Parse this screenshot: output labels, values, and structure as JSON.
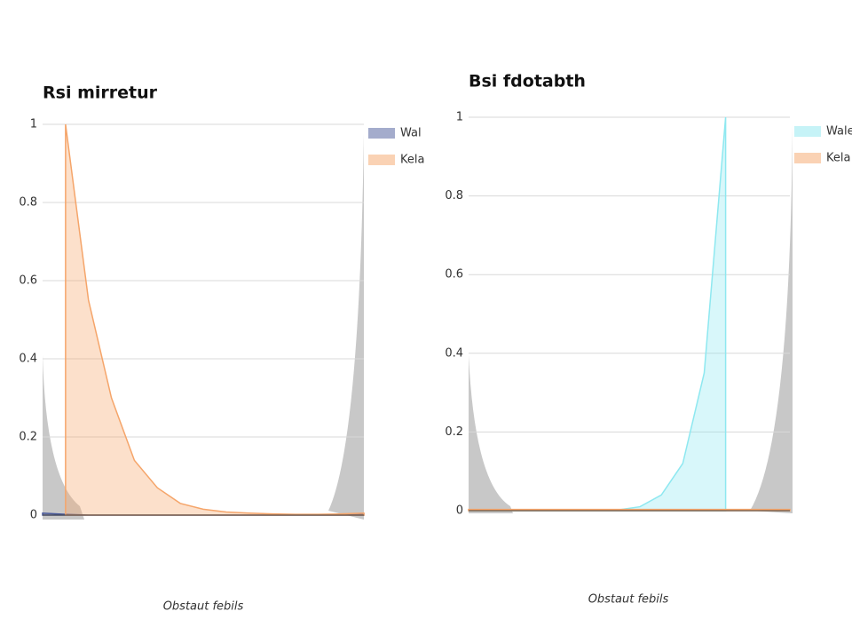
{
  "chart_data": [
    {
      "type": "area",
      "title": "Rsi mirretur",
      "x_label": "Obstaut febils",
      "categories": [
        null,
        null,
        null,
        null,
        null,
        null,
        null,
        null,
        null,
        null,
        null,
        null,
        null,
        null,
        null
      ],
      "series": [
        {
          "name": "Wal",
          "color": "#4a5a9a",
          "values": [
            0.005,
            0.002,
            0,
            0,
            0,
            0,
            0,
            0,
            0,
            0,
            0,
            0,
            0,
            0,
            0.002
          ]
        },
        {
          "name": "Kela",
          "color": "#f5a56a",
          "values": [
            null,
            1,
            0.55,
            0.3,
            0.14,
            0.07,
            0.03,
            0.015,
            0.008,
            0.005,
            0.003,
            0.002,
            0.002,
            0.003,
            0.005
          ]
        }
      ],
      "ylim": [
        0,
        1
      ],
      "yticks": [
        0,
        0.2,
        0.4,
        0.6,
        0.8,
        1
      ],
      "grid": true
    },
    {
      "type": "area",
      "title": "Bsi fdotabth",
      "x_label": "Obstaut febils",
      "categories": [
        null,
        null,
        null,
        null,
        null,
        null,
        null,
        null,
        null,
        null,
        null,
        null,
        null,
        null,
        null,
        null
      ],
      "series": [
        {
          "name": "Wale",
          "color": "#8ee8f0",
          "values": [
            0,
            0,
            0,
            0,
            0,
            0,
            0,
            0.002,
            0.01,
            0.04,
            0.12,
            0.35,
            1,
            null,
            null,
            null
          ]
        },
        {
          "name": "Kela",
          "color": "#f5a56a",
          "values": [
            0.003,
            0.003,
            0.003,
            0.003,
            0.003,
            0.003,
            0.003,
            0.003,
            0.003,
            0.003,
            0.003,
            0.003,
            0.003,
            0.003,
            0.003,
            0.003
          ]
        }
      ],
      "ylim": [
        0,
        1
      ],
      "yticks": [
        0,
        0.2,
        0.4,
        0.6,
        0.8,
        1
      ],
      "grid": true
    }
  ]
}
